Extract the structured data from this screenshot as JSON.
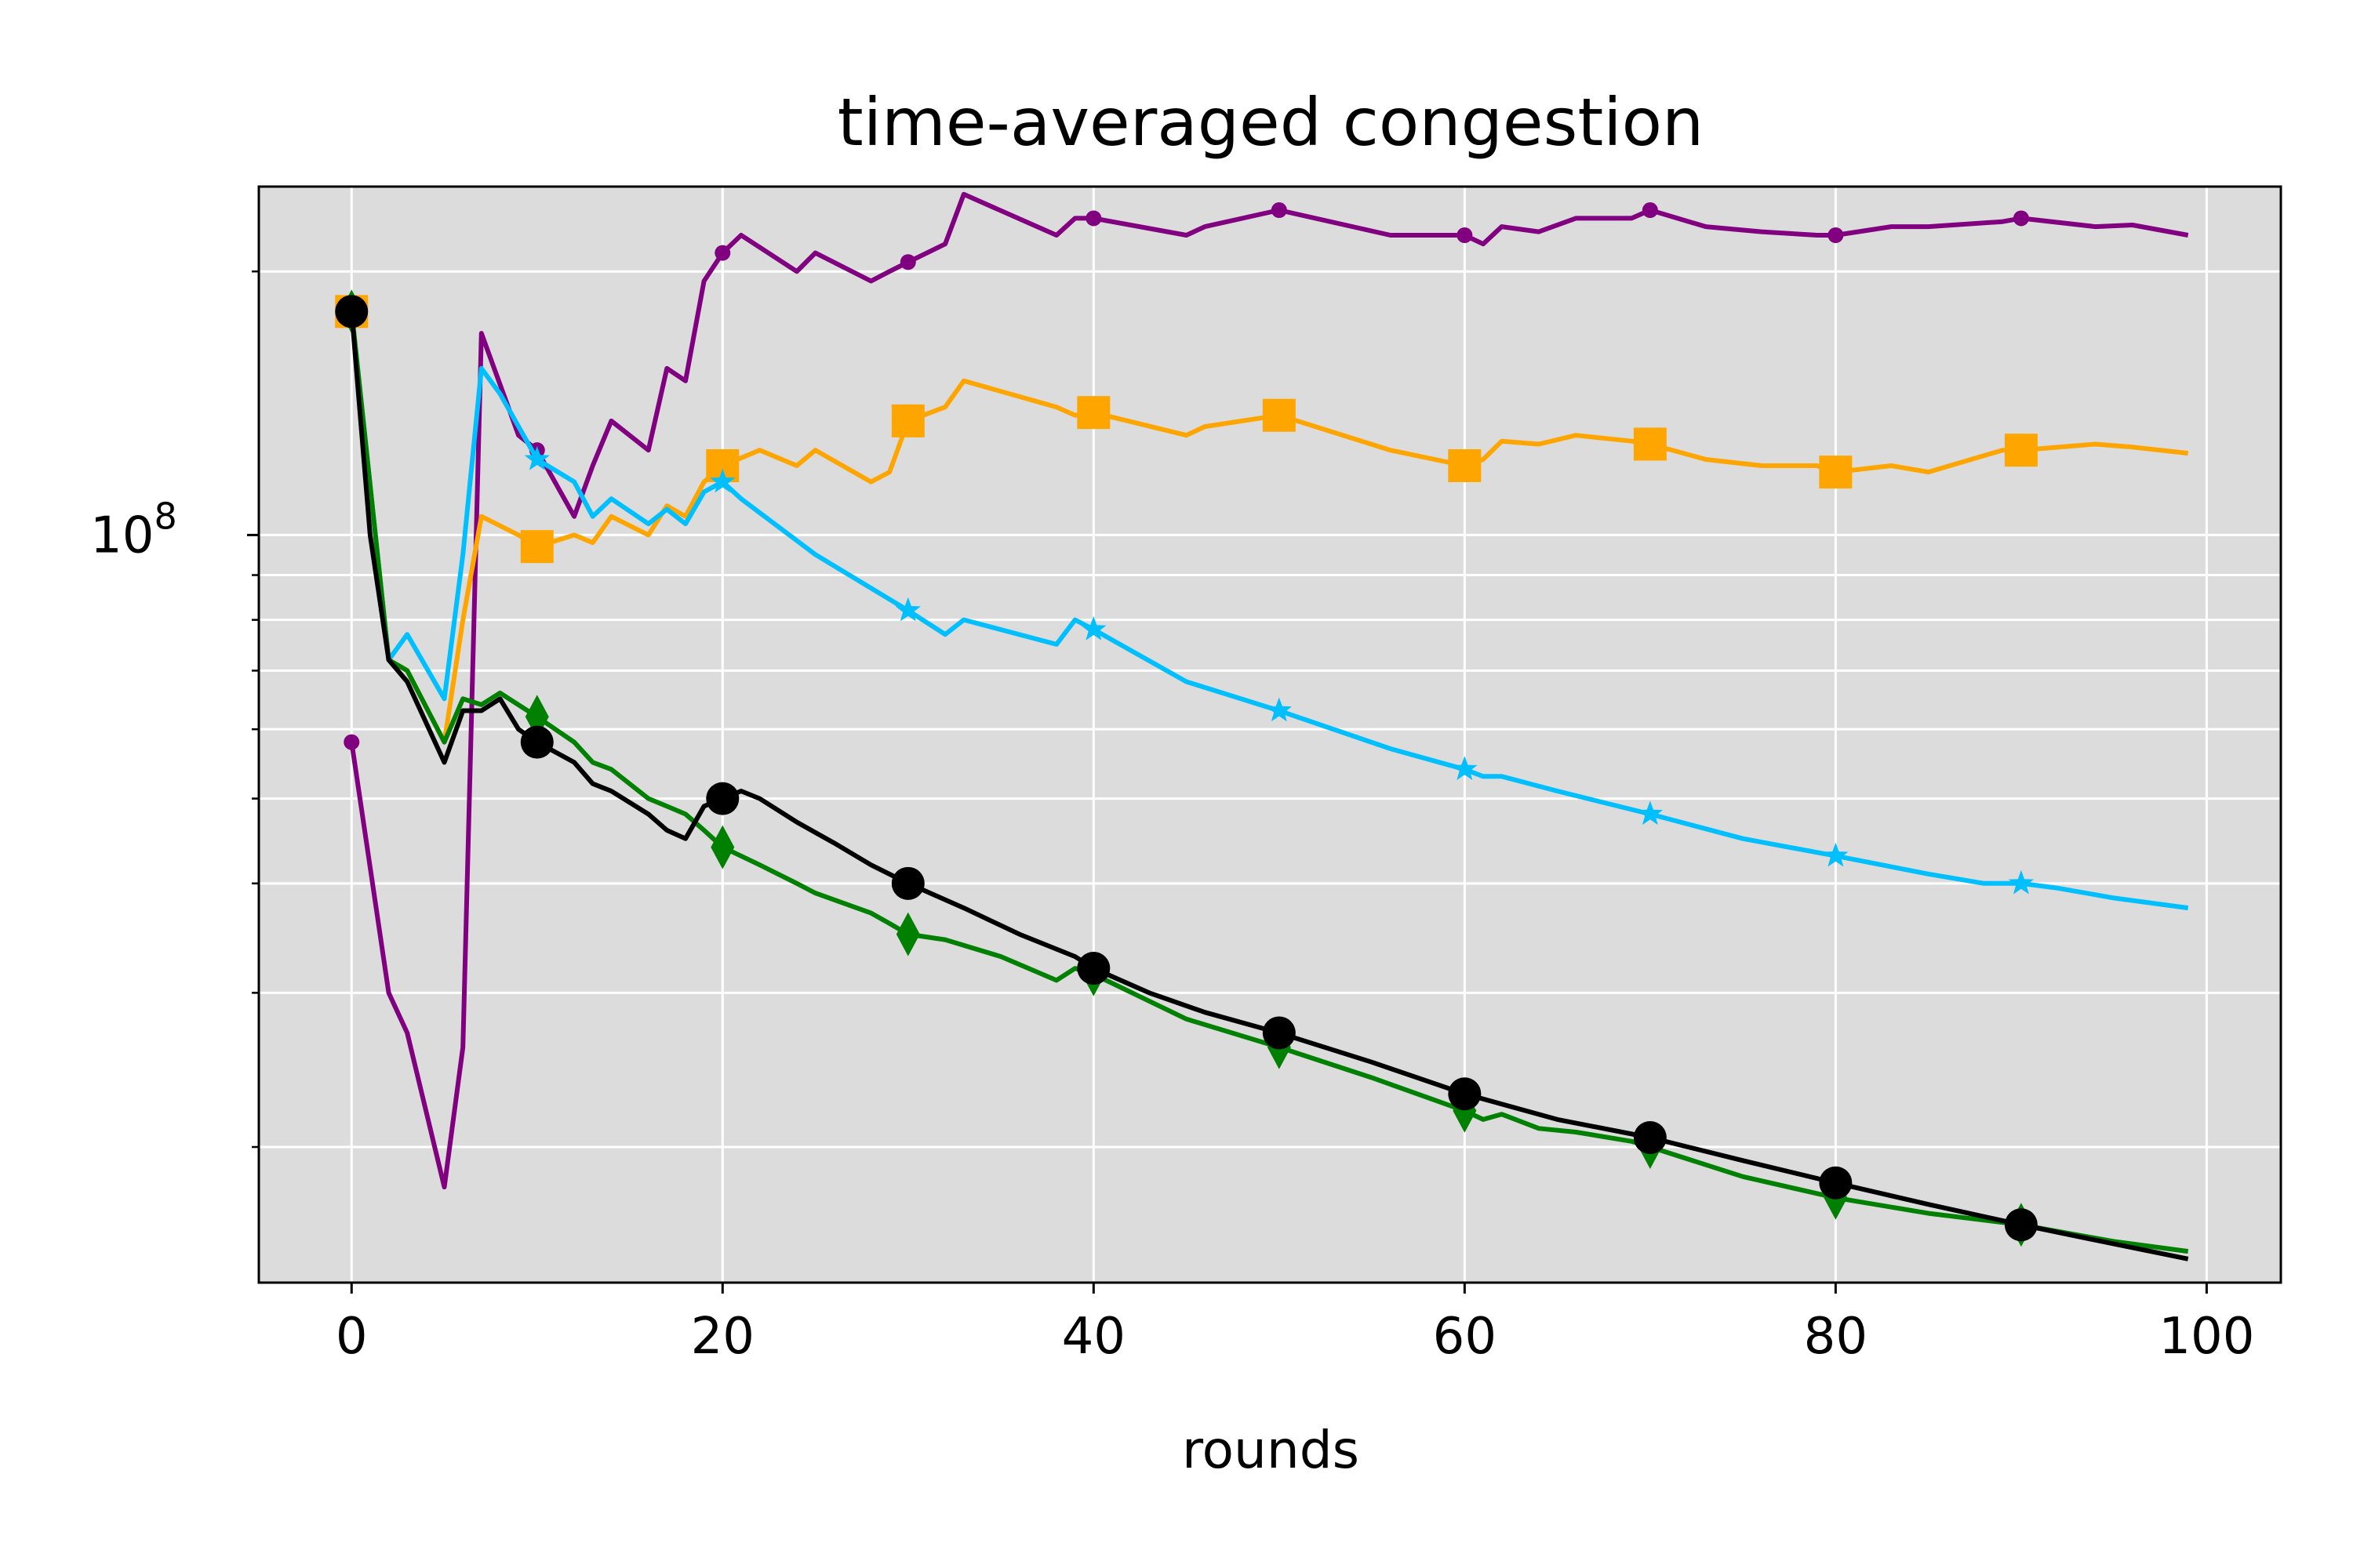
{
  "chart_data": {
    "type": "line",
    "title": "time-averaged congestion",
    "xlabel": "rounds",
    "ylabel": "",
    "xlim": [
      -5,
      104
    ],
    "ylim": [
      14000000,
      250000000
    ],
    "yscale": "log",
    "grid": true,
    "background": "#dcdcdc",
    "xticks": [
      {
        "value": 0,
        "label": "0"
      },
      {
        "value": 20,
        "label": "20"
      },
      {
        "value": 40,
        "label": "40"
      },
      {
        "value": 60,
        "label": "60"
      },
      {
        "value": 80,
        "label": "80"
      },
      {
        "value": 100,
        "label": "100"
      }
    ],
    "yticks_major": [
      {
        "value": 100000000,
        "base": "10",
        "exponent": "8"
      }
    ],
    "yticks_minor": [
      20000000,
      30000000,
      40000000,
      50000000,
      60000000,
      70000000,
      80000000,
      90000000,
      200000000
    ],
    "series": [
      {
        "color": "#800080",
        "marker": "dot",
        "x": [
          0,
          2,
          3,
          5,
          6,
          7,
          9,
          10,
          12,
          13,
          14,
          16,
          17,
          18,
          19,
          20,
          21,
          24,
          25,
          28,
          29,
          30,
          32,
          33,
          38,
          39,
          40,
          45,
          46,
          50,
          56,
          60,
          61,
          62,
          64,
          66,
          69,
          70,
          73,
          76,
          79,
          80,
          83,
          85,
          89,
          90,
          94,
          96,
          99
        ],
        "y": [
          58000000,
          30000000,
          27000000,
          18000000,
          26000000,
          170000000,
          130000000,
          125000000,
          105000000,
          120000000,
          135000000,
          125000000,
          155000000,
          150000000,
          195000000,
          210000000,
          220000000,
          200000000,
          210000000,
          195000000,
          200000000,
          205000000,
          215000000,
          245000000,
          220000000,
          230000000,
          230000000,
          220000000,
          225000000,
          235000000,
          220000000,
          220000000,
          215000000,
          225000000,
          222000000,
          230000000,
          230000000,
          235000000,
          225000000,
          222000000,
          220000000,
          220000000,
          225000000,
          225000000,
          228000000,
          230000000,
          225000000,
          226000000,
          220000000
        ]
      },
      {
        "color": "#ffa500",
        "marker": "square",
        "x": [
          0,
          2,
          3,
          5,
          6,
          7,
          9,
          10,
          12,
          13,
          14,
          16,
          17,
          18,
          19,
          20,
          22,
          24,
          25,
          28,
          29,
          30,
          32,
          33,
          38,
          39,
          40,
          45,
          46,
          50,
          56,
          60,
          61,
          62,
          64,
          66,
          69,
          70,
          73,
          76,
          79,
          80,
          83,
          85,
          89,
          90,
          94,
          96,
          99
        ],
        "y": [
          180000000,
          72000000,
          70000000,
          58000000,
          80000000,
          105000000,
          100000000,
          97000000,
          100000000,
          98000000,
          105000000,
          100000000,
          108000000,
          105000000,
          115000000,
          120000000,
          125000000,
          120000000,
          125000000,
          115000000,
          118000000,
          135000000,
          140000000,
          150000000,
          140000000,
          137000000,
          138000000,
          130000000,
          133000000,
          137000000,
          125000000,
          120000000,
          122000000,
          128000000,
          127000000,
          130000000,
          128000000,
          127000000,
          122000000,
          120000000,
          120000000,
          118000000,
          120000000,
          118000000,
          125000000,
          125000000,
          127000000,
          126000000,
          124000000
        ]
      },
      {
        "color": "#00bfff",
        "marker": "star",
        "x": [
          0,
          2,
          3,
          5,
          6,
          7,
          8,
          10,
          12,
          13,
          14,
          16,
          17,
          18,
          19,
          20,
          21,
          25,
          30,
          32,
          33,
          38,
          39,
          40,
          45,
          50,
          56,
          60,
          61,
          62,
          65,
          70,
          75,
          80,
          85,
          88,
          90,
          92,
          95,
          99
        ],
        "y": [
          180000000,
          72000000,
          77000000,
          65000000,
          95000000,
          155000000,
          145000000,
          122000000,
          115000000,
          105000000,
          110000000,
          103000000,
          107000000,
          103000000,
          112000000,
          115000000,
          110000000,
          95000000,
          82000000,
          77000000,
          80000000,
          75000000,
          80000000,
          78000000,
          68000000,
          63000000,
          57000000,
          54000000,
          53000000,
          53000000,
          51000000,
          48000000,
          45000000,
          43000000,
          41000000,
          40000000,
          40000000,
          39500000,
          38500000,
          37500000
        ]
      },
      {
        "color": "#008000",
        "marker": "diamond",
        "x": [
          0,
          2,
          3,
          5,
          6,
          7,
          8,
          10,
          12,
          13,
          14,
          16,
          17,
          18,
          19,
          20,
          22,
          24,
          25,
          28,
          29,
          30,
          32,
          35,
          38,
          39,
          40,
          45,
          50,
          55,
          60,
          61,
          62,
          64,
          66,
          69,
          70,
          75,
          80,
          85,
          88,
          90,
          95,
          99
        ],
        "y": [
          180000000,
          72000000,
          70000000,
          58000000,
          65000000,
          64000000,
          66000000,
          62000000,
          58000000,
          55000000,
          54000000,
          50000000,
          49000000,
          48000000,
          46000000,
          44000000,
          42000000,
          40000000,
          39000000,
          37000000,
          36000000,
          35000000,
          34500000,
          33000000,
          31000000,
          32000000,
          31500000,
          28000000,
          26000000,
          24000000,
          22000000,
          21500000,
          21800000,
          21000000,
          20800000,
          20300000,
          20000000,
          18500000,
          17500000,
          16800000,
          16500000,
          16300000,
          15600000,
          15200000
        ]
      },
      {
        "color": "#000000",
        "marker": "circle",
        "x": [
          0,
          1,
          2,
          3,
          5,
          6,
          7,
          8,
          9,
          10,
          12,
          13,
          14,
          16,
          17,
          18,
          19,
          20,
          21,
          22,
          24,
          26,
          28,
          30,
          33,
          36,
          39,
          40,
          43,
          46,
          50,
          55,
          60,
          65,
          70,
          75,
          80,
          85,
          90,
          95,
          99
        ],
        "y": [
          180000000,
          100000000,
          72000000,
          68000000,
          55000000,
          63000000,
          63000000,
          65000000,
          60000000,
          58000000,
          55000000,
          52000000,
          51000000,
          48000000,
          46000000,
          45000000,
          49000000,
          50000000,
          51000000,
          50000000,
          47000000,
          44500000,
          42000000,
          40000000,
          37500000,
          35000000,
          33000000,
          32000000,
          30000000,
          28500000,
          27000000,
          25000000,
          23000000,
          21500000,
          20500000,
          19300000,
          18200000,
          17200000,
          16300000,
          15500000,
          14900000
        ]
      }
    ]
  }
}
